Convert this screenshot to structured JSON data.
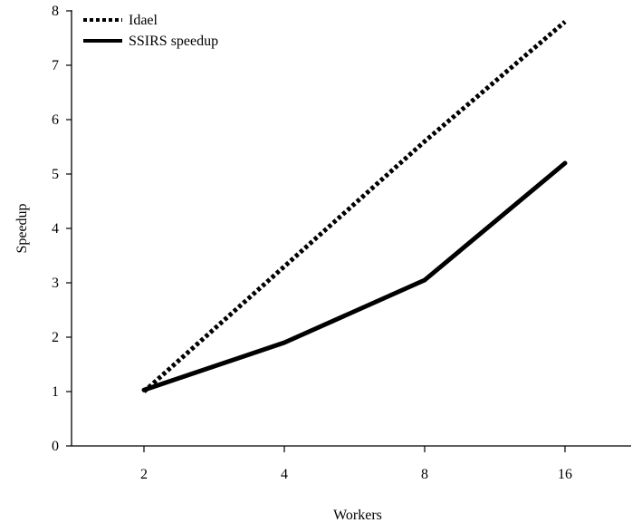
{
  "chart_data": {
    "type": "line",
    "title": "",
    "xlabel": "Workers",
    "ylabel": "Speedup",
    "categories": [
      "2",
      "4",
      "8",
      "16"
    ],
    "ylim": [
      0,
      8
    ],
    "yticks": [
      0,
      1,
      2,
      3,
      4,
      5,
      6,
      7,
      8
    ],
    "grid": false,
    "legend_position": "top-left",
    "series": [
      {
        "name": "Idael",
        "style": "dotted",
        "color": "#000000",
        "values": [
          1.0,
          3.3,
          5.6,
          7.8
        ]
      },
      {
        "name": "SSIRS speedup",
        "style": "solid",
        "color": "#000000",
        "values": [
          1.03,
          1.9,
          3.05,
          5.2
        ]
      }
    ]
  }
}
